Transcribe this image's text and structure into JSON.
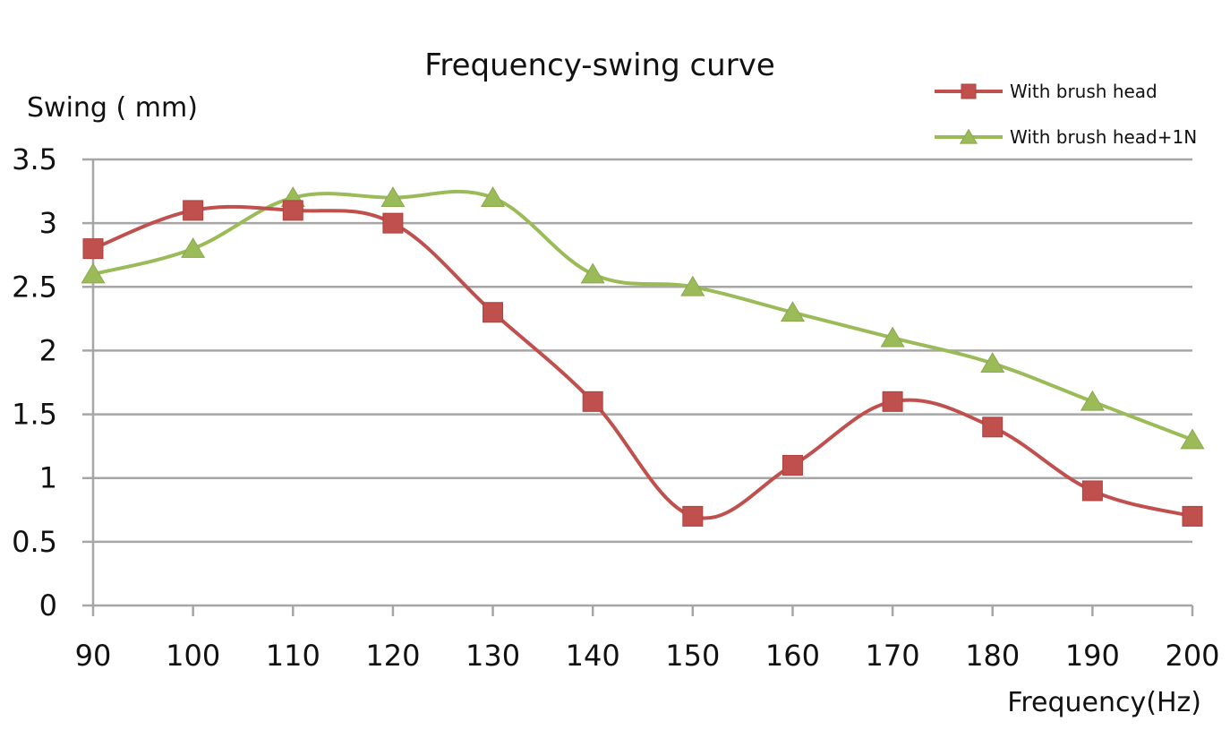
{
  "chart_data": {
    "type": "line",
    "title": "Frequency-swing curve",
    "xlabel": "Frequency(Hz)",
    "ylabel": "Swing ( mm)",
    "x": [
      90,
      100,
      110,
      120,
      130,
      140,
      150,
      160,
      170,
      180,
      190,
      200
    ],
    "x_tick_labels": [
      "90",
      "100",
      "110",
      "120",
      "130",
      "140",
      "150",
      "160",
      "170",
      "180",
      "190",
      "200"
    ],
    "y_tick_labels": [
      "0",
      "0.5",
      "1",
      "1.5",
      "2",
      "2.5",
      "3",
      "3.5"
    ],
    "ylim": [
      0,
      3.5
    ],
    "xlim": [
      90,
      200
    ],
    "grid": "horizontal",
    "legend_position": "top-right",
    "series": [
      {
        "name": "With brush head",
        "color": "#c0504d",
        "marker": "square",
        "smooth": true,
        "values": [
          2.8,
          3.1,
          3.1,
          3.0,
          2.3,
          1.6,
          0.7,
          1.1,
          1.6,
          1.4,
          0.9,
          0.7
        ]
      },
      {
        "name": "With brush head+1N",
        "color": "#9bbb59",
        "marker": "triangle",
        "smooth": true,
        "values": [
          2.6,
          2.8,
          3.2,
          3.2,
          3.2,
          2.6,
          2.5,
          2.3,
          2.1,
          1.9,
          1.6,
          1.3
        ]
      }
    ]
  }
}
